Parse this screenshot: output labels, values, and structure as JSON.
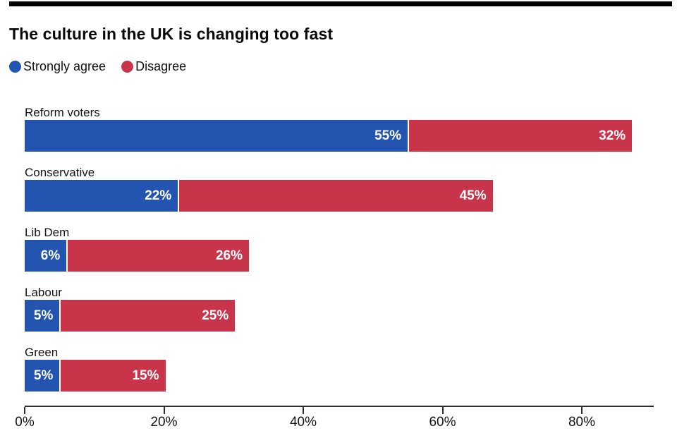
{
  "page": {
    "title": "The culture in the UK is changing too fast"
  },
  "legend": {
    "items": [
      {
        "label": "Strongly agree",
        "color": "#2254b0"
      },
      {
        "label": "Disagree",
        "color": "#c8354a"
      }
    ]
  },
  "chart_data": {
    "type": "bar",
    "orientation": "horizontal",
    "stacked": true,
    "grid": false,
    "legend_position": "top-left",
    "title": "The culture in the UK is changing too fast",
    "categories": [
      "Reform voters",
      "Conservative",
      "Lib Dem",
      "Labour",
      "Green"
    ],
    "series": [
      {
        "name": "Strongly agree",
        "color": "#2254b0",
        "values": [
          55,
          22,
          6,
          5,
          5
        ]
      },
      {
        "name": "Disagree",
        "color": "#c8354a",
        "values": [
          32,
          45,
          26,
          25,
          15
        ]
      }
    ],
    "value_label_suffix": "%",
    "xlabel": "",
    "ylabel": "",
    "xlim": [
      0,
      90
    ],
    "x_ticks": [
      {
        "value": 0,
        "label": "0%"
      },
      {
        "value": 20,
        "label": "20%"
      },
      {
        "value": 40,
        "label": "40%"
      },
      {
        "value": 60,
        "label": "60%"
      },
      {
        "value": 80,
        "label": "80%"
      }
    ]
  }
}
